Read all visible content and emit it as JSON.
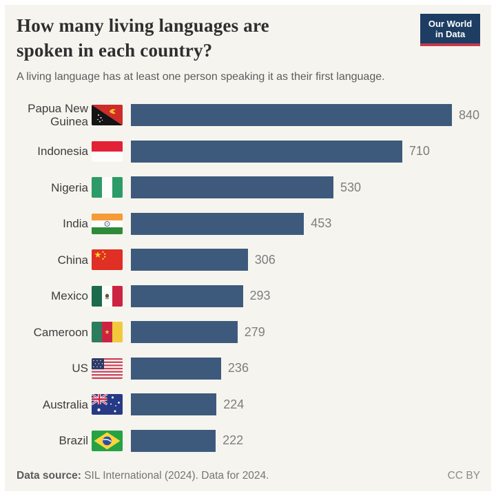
{
  "header": {
    "title": "How many living languages are spoken in each country?",
    "subtitle": "A living language has at least one person speaking it as their first language.",
    "logo_line1": "Our World",
    "logo_line2": "in Data",
    "logo_bg_color": "#1d3d63",
    "logo_accent_color": "#c43b4c"
  },
  "chart_data": {
    "type": "bar",
    "orientation": "horizontal",
    "title": "How many living languages are spoken in each country?",
    "subtitle": "A living language has at least one person speaking it as their first language.",
    "categories": [
      "Papua New Guinea",
      "Indonesia",
      "Nigeria",
      "India",
      "China",
      "Mexico",
      "Cameroon",
      "US",
      "Australia",
      "Brazil"
    ],
    "values": [
      840,
      710,
      530,
      453,
      306,
      293,
      279,
      236,
      224,
      222
    ],
    "flags": [
      "flag-papua-new-guinea",
      "flag-indonesia",
      "flag-nigeria",
      "flag-india",
      "flag-china",
      "flag-mexico",
      "flag-cameroon",
      "flag-us",
      "flag-australia",
      "flag-brazil"
    ],
    "xlim": [
      0,
      840
    ],
    "bar_color": "#3d5a7c",
    "grid": false,
    "legend": false,
    "value_labels": "end-of-bar"
  },
  "footer": {
    "source_label": "Data source:",
    "source_text": "SIL International (2024). Data for 2024.",
    "license": "CC BY"
  }
}
